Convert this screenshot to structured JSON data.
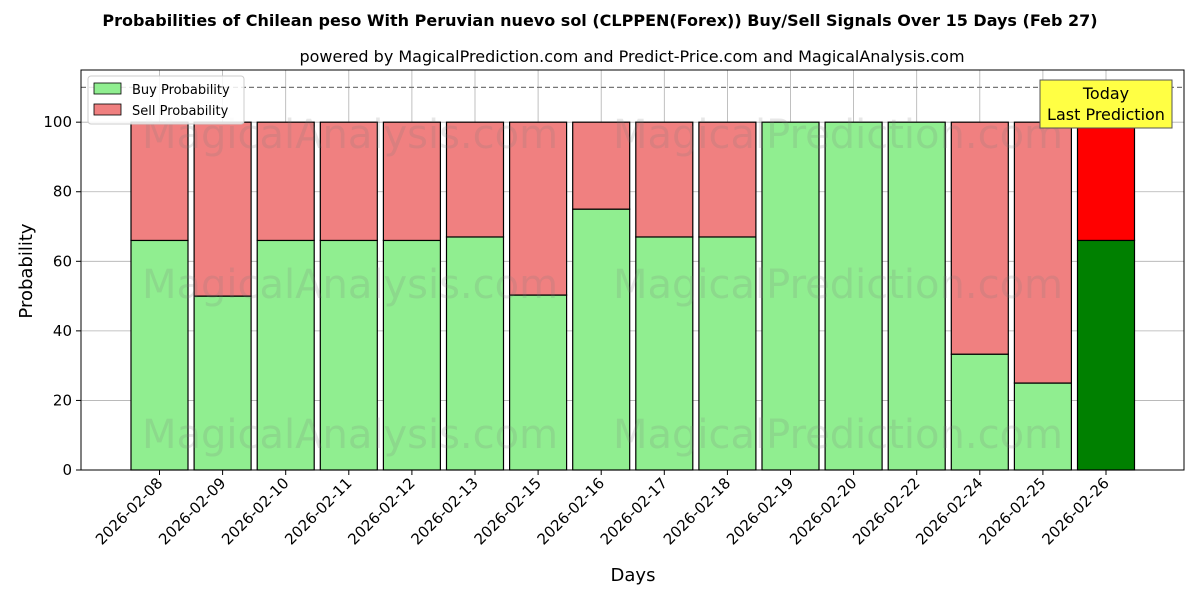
{
  "chart_data": {
    "type": "bar",
    "stacked": true,
    "title": "Probabilities of Chilean peso With Peruvian nuevo sol (CLPPEN(Forex)) Buy/Sell Signals Over 15 Days (Feb 27)",
    "subtitle": "powered by MagicalPrediction.com and Predict-Price.com and MagicalAnalysis.com",
    "xlabel": "Days",
    "ylabel": "Probability",
    "ylim": [
      0,
      115
    ],
    "yticks": [
      0,
      20,
      40,
      60,
      80,
      100
    ],
    "reference_line": 110,
    "grid": true,
    "legend_position": "top-left",
    "categories": [
      "2026-02-08",
      "2026-02-09",
      "2026-02-10",
      "2026-02-11",
      "2026-02-12",
      "2026-02-13",
      "2026-02-15",
      "2026-02-16",
      "2026-02-17",
      "2026-02-18",
      "2026-02-19",
      "2026-02-20",
      "2026-02-22",
      "2026-02-24",
      "2026-02-25",
      "2026-02-26"
    ],
    "series": [
      {
        "name": "Buy Probability",
        "color": "#90ee90",
        "highlight_color": "#008000",
        "values": [
          66,
          50,
          66,
          66,
          66,
          67,
          50.3,
          75,
          67,
          67,
          100,
          100,
          100,
          33.3,
          25,
          66
        ]
      },
      {
        "name": "Sell Probability",
        "color": "#f08080",
        "highlight_color": "#ff0000",
        "values": [
          34,
          50,
          34,
          34,
          34,
          33,
          49.7,
          25,
          33,
          33,
          0,
          0,
          0,
          66.7,
          75,
          34
        ]
      }
    ],
    "highlight_last": true,
    "annotation": {
      "line1": "Today",
      "line2": "Last Prediction",
      "color": "#ffff44"
    },
    "watermarks": [
      "MagicalAnalysis.com",
      "MagicalPrediction.com"
    ]
  }
}
